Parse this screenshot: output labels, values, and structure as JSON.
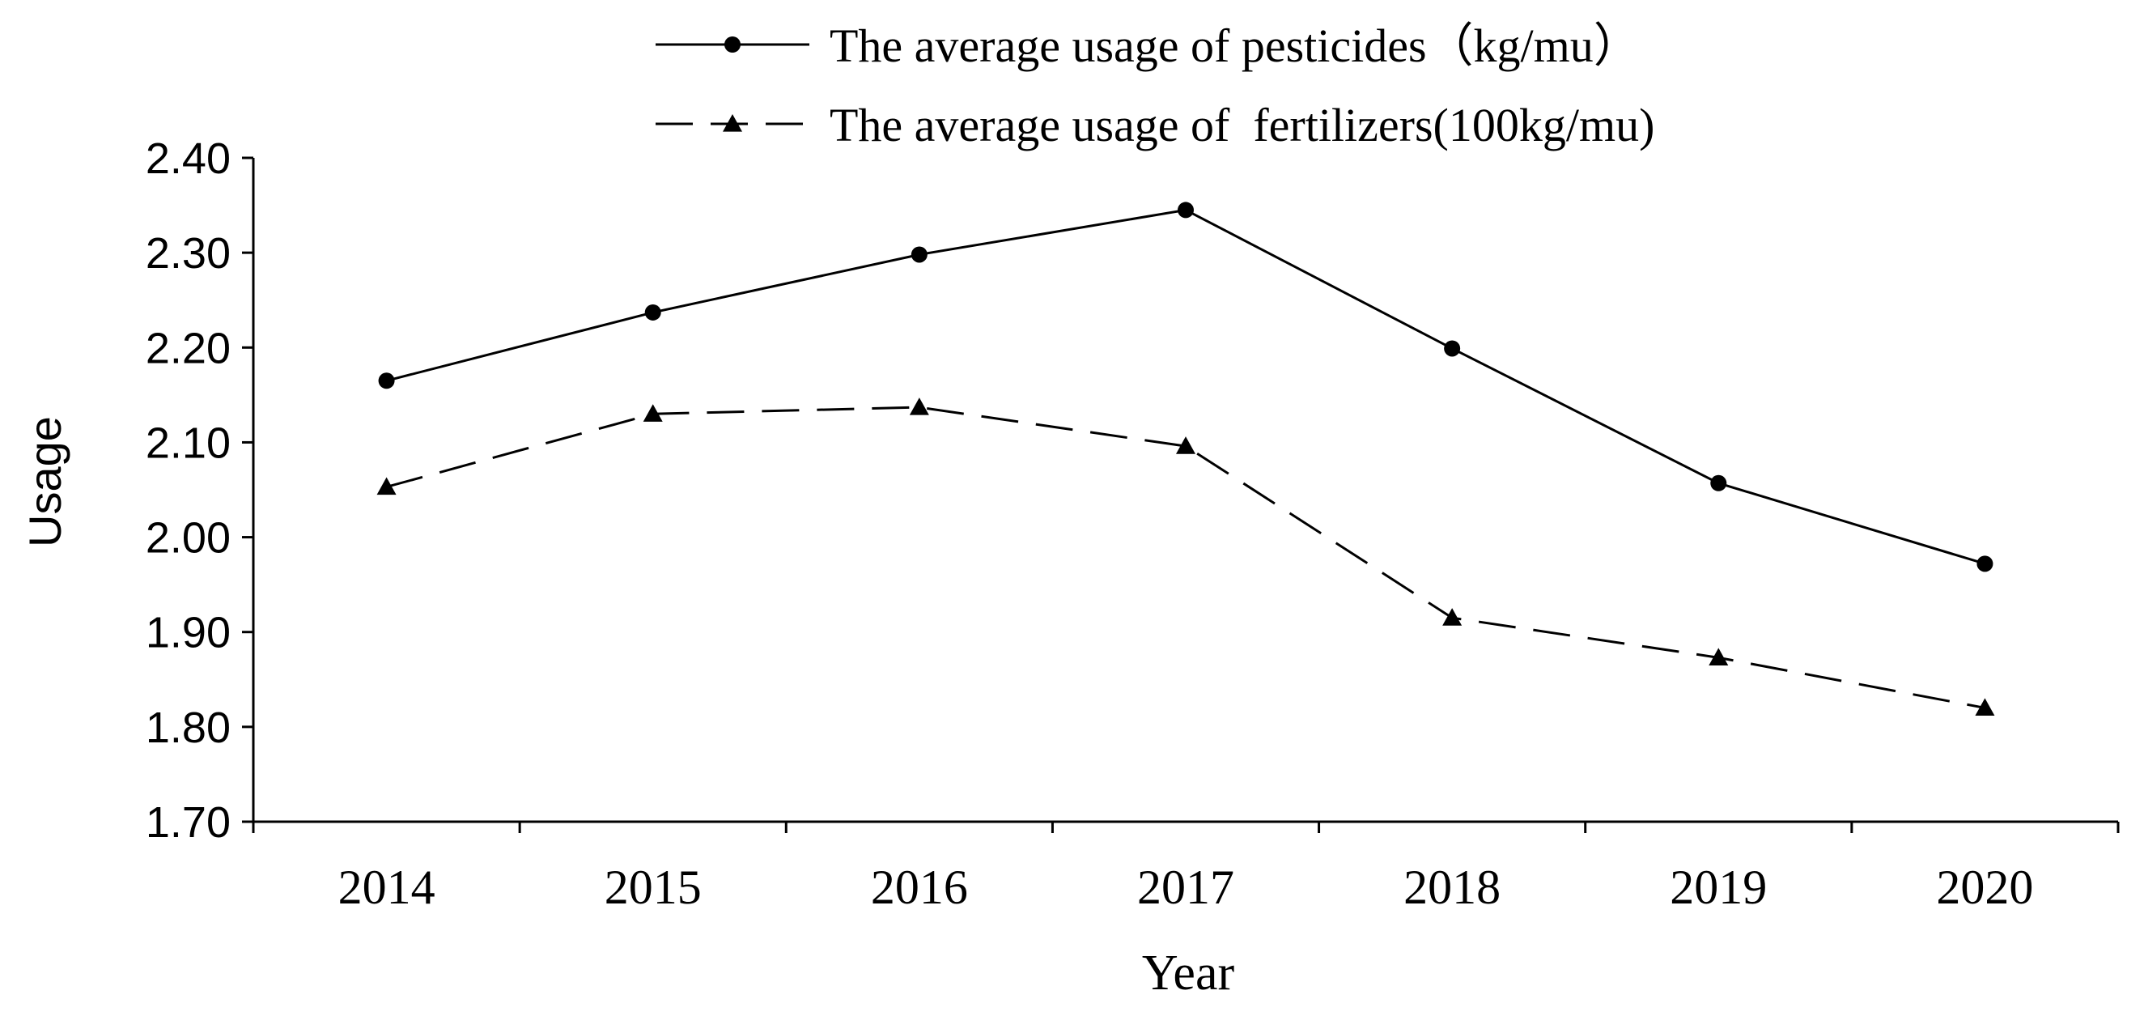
{
  "chart_data": {
    "type": "line",
    "title": "",
    "xlabel": "Year",
    "ylabel": "Usage",
    "categories": [
      "2014",
      "2015",
      "2016",
      "2017",
      "2018",
      "2019",
      "2020"
    ],
    "ylim": [
      1.7,
      2.4
    ],
    "y_ticks": [
      "1.70",
      "1.80",
      "1.90",
      "2.00",
      "2.10",
      "2.20",
      "2.30",
      "2.40"
    ],
    "grid": false,
    "legend_position": "top-center",
    "series": [
      {
        "name": "The average usage of pesticides（kg/mu）",
        "marker": "circle",
        "line_style": "solid",
        "values": [
          2.165,
          2.237,
          2.298,
          2.345,
          2.199,
          2.057,
          1.972
        ]
      },
      {
        "name": "The average usage of  fertilizers(100kg/mu)",
        "marker": "triangle",
        "line_style": "dashed",
        "values": [
          2.053,
          2.13,
          2.137,
          2.096,
          1.915,
          1.873,
          1.82
        ]
      }
    ],
    "colors": {
      "line": "#000000",
      "background": "#ffffff"
    }
  }
}
